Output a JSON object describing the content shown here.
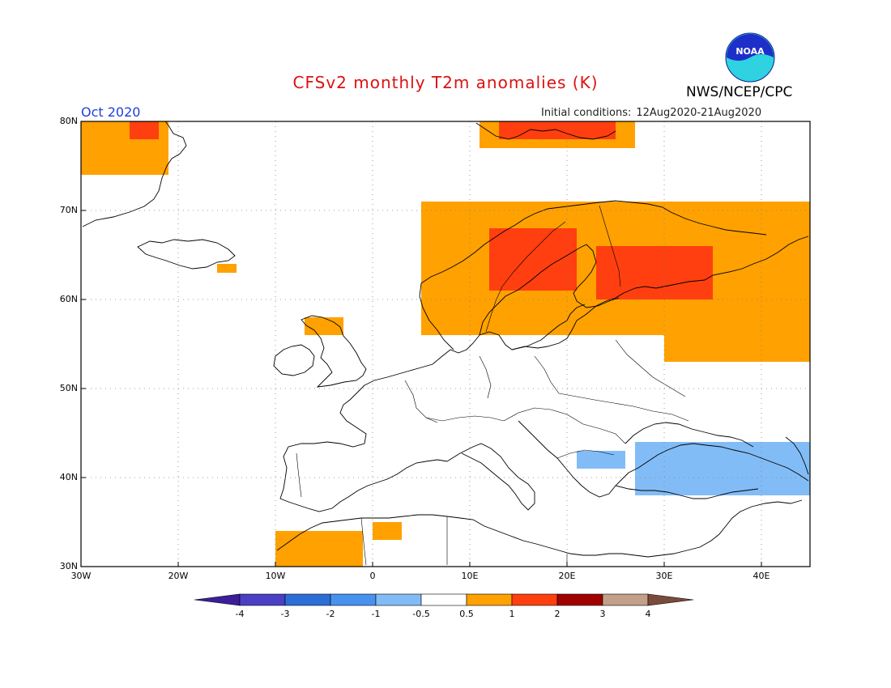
{
  "header": {
    "title": "CFSv2 monthly T2m anomalies (K)",
    "organization": "NWS/NCEP/CPC",
    "logo_text": "NOAA",
    "month": "Oct 2020",
    "initial_conditions_label": "Initial conditions:",
    "initial_conditions_range": "12Aug2020-21Aug2020"
  },
  "map": {
    "region": "Europe",
    "lon_range": [
      -30,
      45
    ],
    "lat_range": [
      30,
      80
    ],
    "y_ticks": [
      {
        "label": "80N",
        "lat": 80
      },
      {
        "label": "70N",
        "lat": 70
      },
      {
        "label": "60N",
        "lat": 60
      },
      {
        "label": "50N",
        "lat": 50
      },
      {
        "label": "40N",
        "lat": 40
      },
      {
        "label": "30N",
        "lat": 30
      }
    ],
    "x_ticks": [
      {
        "label": "30W",
        "lon": -30
      },
      {
        "label": "20W",
        "lon": -20
      },
      {
        "label": "10W",
        "lon": -10
      },
      {
        "label": "0",
        "lon": 0
      },
      {
        "label": "10E",
        "lon": 10
      },
      {
        "label": "20E",
        "lon": 20
      },
      {
        "label": "30E",
        "lon": 30
      },
      {
        "label": "40E",
        "lon": 40
      }
    ],
    "grid": "dotted",
    "anomaly_regions": [
      {
        "name": "Greenland coast",
        "level": "0.5-1",
        "lon": [
          -30,
          -21
        ],
        "lat": [
          74,
          80
        ]
      },
      {
        "name": "Greenland warm",
        "level": "1-2",
        "lon": [
          -25,
          -22
        ],
        "lat": [
          78,
          80
        ]
      },
      {
        "name": "Svalbard",
        "level": "0.5-1",
        "lon": [
          11,
          27
        ],
        "lat": [
          77,
          80
        ]
      },
      {
        "name": "Svalbard warm",
        "level": "1-2",
        "lon": [
          13,
          25
        ],
        "lat": [
          78,
          80
        ]
      },
      {
        "name": "Scandinavia",
        "level": "0.5-1",
        "lon": [
          5,
          45
        ],
        "lat": [
          56,
          71
        ]
      },
      {
        "name": "Western Russia",
        "level": "0.5-1",
        "lon": [
          30,
          45
        ],
        "lat": [
          53,
          67
        ]
      },
      {
        "name": "Sweden interior",
        "level": "1-2",
        "lon": [
          12,
          21
        ],
        "lat": [
          61,
          68
        ]
      },
      {
        "name": "Finland / Karelia",
        "level": "1-2",
        "lon": [
          23,
          35
        ],
        "lat": [
          60,
          66
        ]
      },
      {
        "name": "Iceland south",
        "level": "0.5-1",
        "lon": [
          -16,
          -14
        ],
        "lat": [
          63,
          64
        ]
      },
      {
        "name": "Ireland west",
        "level": "0.5-1",
        "lon": [
          -7,
          -3
        ],
        "lat": [
          56,
          58
        ]
      },
      {
        "name": "Morocco",
        "level": "0.5-1",
        "lon": [
          -10,
          -1
        ],
        "lat": [
          30,
          34
        ]
      },
      {
        "name": "Algeria coast",
        "level": "0.5-1",
        "lon": [
          0,
          3
        ],
        "lat": [
          33,
          35
        ]
      },
      {
        "name": "Black Sea / Turkey",
        "level": "-0.5--1",
        "lon": [
          27,
          45
        ],
        "lat": [
          38,
          44
        ]
      },
      {
        "name": "Greece coast",
        "level": "-0.5--1",
        "lon": [
          21,
          26
        ],
        "lat": [
          41,
          43
        ]
      }
    ]
  },
  "colorbar": {
    "labels": [
      "-4",
      "-3",
      "-2",
      "-1",
      "-0.5",
      "0.5",
      "1",
      "2",
      "3",
      "4"
    ],
    "colors": [
      "#3c1e9a",
      "#4b3fc4",
      "#2b6fd6",
      "#4792ee",
      "#82bcf6",
      "#ffffff",
      "#ffa100",
      "#ff3f0f",
      "#a00000",
      "#c2a08a",
      "#7a4b3c"
    ]
  }
}
